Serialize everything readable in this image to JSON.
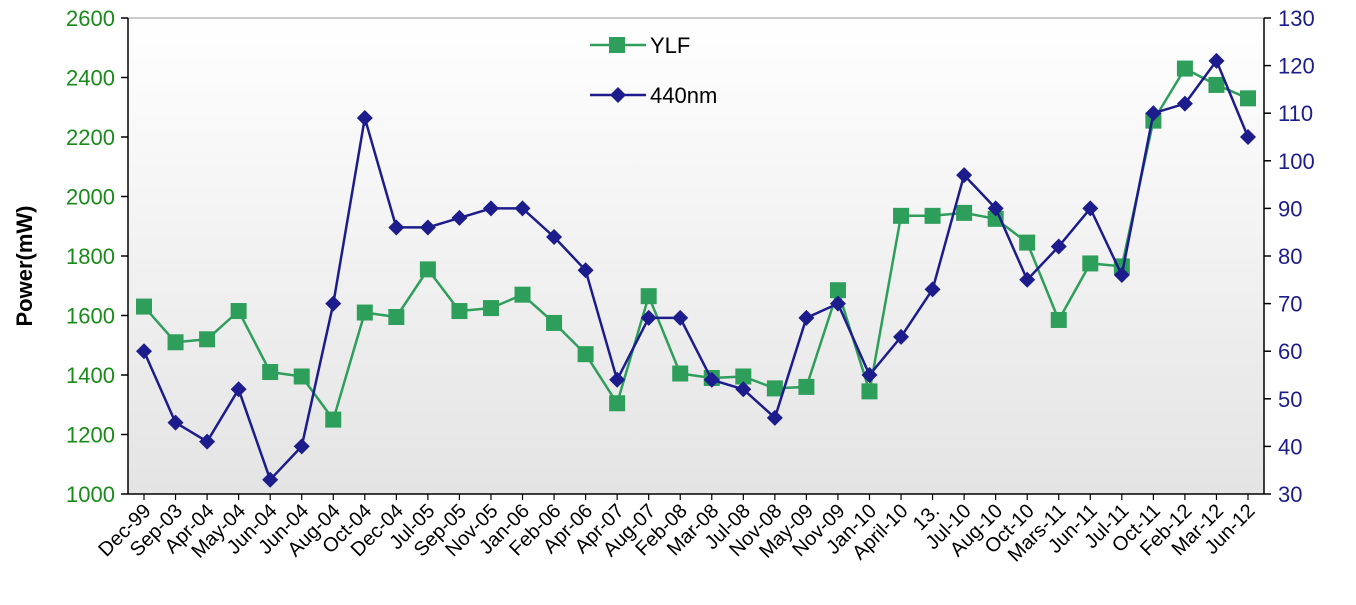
{
  "chart_data": {
    "type": "line",
    "title": "",
    "xlabel": "",
    "ylabel": "Power(mW)",
    "y2label": "",
    "ylim": [
      1000,
      2600
    ],
    "y2lim": [
      30,
      130
    ],
    "yticks": [
      "1000",
      "1200",
      "1400",
      "1600",
      "1800",
      "2000",
      "2200",
      "2400",
      "2600"
    ],
    "y2ticks": [
      "30",
      "40",
      "50",
      "60",
      "70",
      "80",
      "90",
      "100",
      "110",
      "120",
      "130"
    ],
    "legend_position": "top-center",
    "grid": false,
    "categories": [
      "Dec-99",
      "Sep-03",
      "Apr-04",
      "May-04",
      "Jun-04",
      "Jun-04",
      "Aug-04",
      "Oct-04",
      "Dec-04",
      "Jul-05",
      "Sep-05",
      "Nov-05",
      "Jan-06",
      "Feb-06",
      "Apr-06",
      "Apr-07",
      "Aug-07",
      "Feb-08",
      "Mar-08",
      "Jul-08",
      "Nov-08",
      "May-09",
      "Nov-09",
      "Jan-10",
      "April-10",
      "13.",
      "Jul-10",
      "Aug-10",
      "Oct-10",
      "Mars-11",
      "Jun-11",
      "Jul-11",
      "Oct-11",
      "Feb-12",
      "Mar-12",
      "Jun-12"
    ],
    "series": [
      {
        "name": "YLF",
        "axis": "left",
        "color": "#2e9e5b",
        "marker": "square",
        "values": [
          1630,
          1510,
          1520,
          1615,
          1410,
          1395,
          1250,
          1610,
          1595,
          1755,
          1615,
          1625,
          1670,
          1575,
          1470,
          1305,
          1665,
          1405,
          1390,
          1395,
          1355,
          1360,
          1685,
          1345,
          1935,
          1935,
          1945,
          1925,
          1845,
          1585,
          1775,
          1765,
          2255,
          2430,
          2375,
          2330
        ]
      },
      {
        "name": "440nm",
        "axis": "right",
        "color": "#1c1c8c",
        "marker": "diamond",
        "values": [
          60,
          45,
          41,
          52,
          33,
          40,
          70,
          109,
          86,
          86,
          88,
          90,
          90,
          84,
          77,
          54,
          67,
          67,
          54,
          52,
          46,
          67,
          70,
          55,
          63,
          73,
          97,
          90,
          75,
          82,
          90,
          76,
          110,
          112,
          121,
          105
        ]
      }
    ]
  }
}
